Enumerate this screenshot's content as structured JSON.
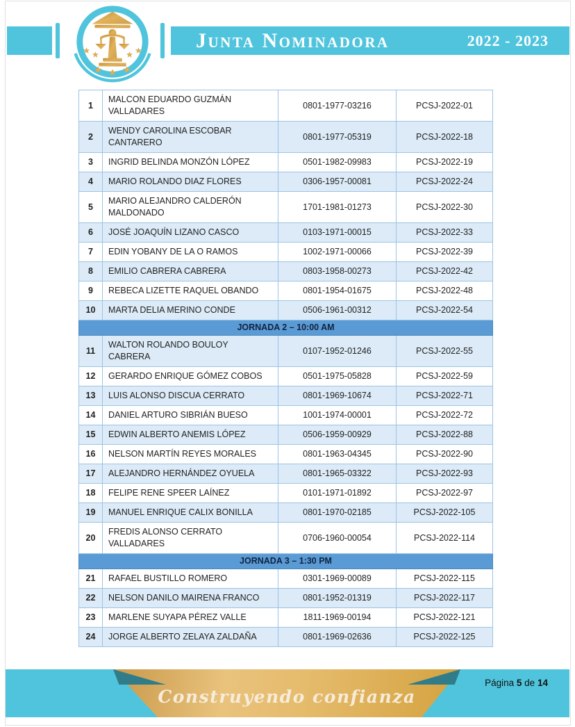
{
  "header": {
    "title": "Junta Nominadora",
    "years": "2022 - 2023",
    "logo": "justice-scales-emblem"
  },
  "colors": {
    "cyan": "#4fc4dc",
    "teal_fold": "#317c89",
    "gold_ribbon": "#d9a84e",
    "emblem_gold": "#d0a04a",
    "table_border": "#9cc3e5",
    "row_stripe": "#dcebf7",
    "section_band": "#5b9bd5"
  },
  "table": {
    "columns": [
      "num",
      "name",
      "id",
      "code"
    ],
    "sections": [
      {
        "header": null,
        "rows": [
          {
            "n": "1",
            "name": "MALCON EDUARDO GUZMÁN VALLADARES",
            "id": "0801-1977-03216",
            "code": "PCSJ-2022-01"
          },
          {
            "n": "2",
            "name": "WENDY CAROLINA ESCOBAR CANTARERO",
            "id": "0801-1977-05319",
            "code": "PCSJ-2022-18"
          },
          {
            "n": "3",
            "name": "INGRID BELINDA MONZÓN LÓPEZ",
            "id": "0501-1982-09983",
            "code": "PCSJ-2022-19"
          },
          {
            "n": "4",
            "name": "MARIO ROLANDO DIAZ FLORES",
            "id": "0306-1957-00081",
            "code": "PCSJ-2022-24"
          },
          {
            "n": "5",
            "name": "MARIO ALEJANDRO CALDERÓN MALDONADO",
            "id": "1701-1981-01273",
            "code": "PCSJ-2022-30"
          },
          {
            "n": "6",
            "name": "JOSÉ JOAQUÍN LIZANO CASCO",
            "id": "0103-1971-00015",
            "code": "PCSJ-2022-33"
          },
          {
            "n": "7",
            "name": "EDIN YOBANY DE LA O RAMOS",
            "id": "1002-1971-00066",
            "code": "PCSJ-2022-39"
          },
          {
            "n": "8",
            "name": "EMILIO CABRERA CABRERA",
            "id": "0803-1958-00273",
            "code": "PCSJ-2022-42"
          },
          {
            "n": "9",
            "name": "REBECA LIZETTE RAQUEL OBANDO",
            "id": "0801-1954-01675",
            "code": "PCSJ-2022-48"
          },
          {
            "n": "10",
            "name": "MARTA DELIA MERINO CONDE",
            "id": "0506-1961-00312",
            "code": "PCSJ-2022-54"
          }
        ]
      },
      {
        "header": "JORNADA 2 – 10:00 AM",
        "rows": [
          {
            "n": "11",
            "name": "WALTON ROLANDO BOULOY CABRERA",
            "id": "0107-1952-01246",
            "code": "PCSJ-2022-55"
          },
          {
            "n": "12",
            "name": "GERARDO ENRIQUE GÓMEZ COBOS",
            "id": "0501-1975-05828",
            "code": "PCSJ-2022-59"
          },
          {
            "n": "13",
            "name": "LUIS ALONSO DISCUA CERRATO",
            "id": "0801-1969-10674",
            "code": "PCSJ-2022-71"
          },
          {
            "n": "14",
            "name": "DANIEL ARTURO SIBRIÁN BUESO",
            "id": "1001-1974-00001",
            "code": "PCSJ-2022-72"
          },
          {
            "n": "15",
            "name": "EDWIN ALBERTO ANEMIS LÓPEZ",
            "id": "0506-1959-00929",
            "code": "PCSJ-2022-88"
          },
          {
            "n": "16",
            "name": "NELSON MARTÍN REYES MORALES",
            "id": "0801-1963-04345",
            "code": "PCSJ-2022-90"
          },
          {
            "n": "17",
            "name": "ALEJANDRO HERNÁNDEZ OYUELA",
            "id": "0801-1965-03322",
            "code": "PCSJ-2022-93"
          },
          {
            "n": "18",
            "name": "FELIPE RENE SPEER LAÍNEZ",
            "id": "0101-1971-01892",
            "code": "PCSJ-2022-97"
          },
          {
            "n": "19",
            "name": "MANUEL ENRIQUE CALIX BONILLA",
            "id": "0801-1970-02185",
            "code": "PCSJ-2022-105"
          },
          {
            "n": "20",
            "name": "FREDIS ALONSO CERRATO VALLADARES",
            "id": "0706-1960-00054",
            "code": "PCSJ-2022-114"
          }
        ]
      },
      {
        "header": "JORNADA 3 – 1:30 PM",
        "rows": [
          {
            "n": "21",
            "name": "RAFAEL BUSTILLO ROMERO",
            "id": "0301-1969-00089",
            "code": "PCSJ-2022-115"
          },
          {
            "n": "22",
            "name": "NELSON DANILO MAIRENA FRANCO",
            "id": "0801-1952-01319",
            "code": "PCSJ-2022-117"
          },
          {
            "n": "23",
            "name": "MARLENE SUYAPA PÉREZ VALLE",
            "id": "1811-1969-00194",
            "code": "PCSJ-2022-121"
          },
          {
            "n": "24",
            "name": "JORGE ALBERTO ZELAYA ZALDAÑA",
            "id": "0801-1969-02636",
            "code": "PCSJ-2022-125"
          }
        ]
      }
    ]
  },
  "footer": {
    "slogan": "Construyendo confianza",
    "page_label": {
      "word": "Página",
      "page": "5",
      "of": "de",
      "total": "14"
    }
  }
}
